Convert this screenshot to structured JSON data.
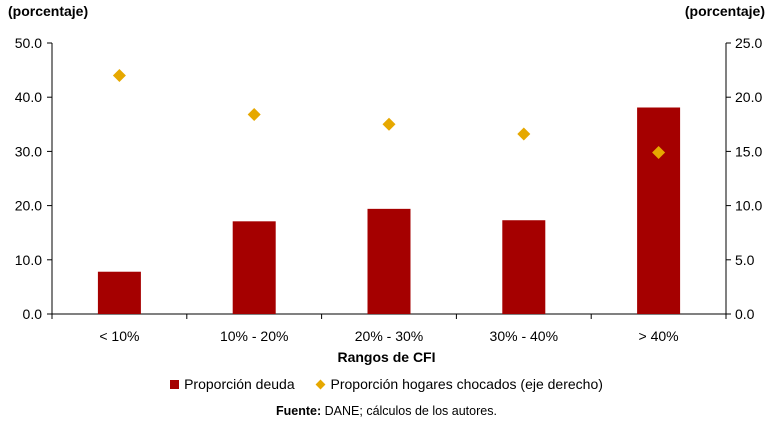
{
  "chart_data": {
    "type": "bar",
    "ylabel_left": "(porcentaje)",
    "ylabel_right": "(porcentaje)",
    "xlabel": "Rangos de CFI",
    "categories": [
      "< 10%",
      "10% - 20%",
      "20% - 30%",
      "30% - 40%",
      "> 40%"
    ],
    "ylim_left": [
      0,
      50
    ],
    "yticks_left": [
      "0.0",
      "10.0",
      "20.0",
      "30.0",
      "40.0",
      "50.0"
    ],
    "ylim_right": [
      0,
      25
    ],
    "yticks_right": [
      "0.0",
      "5.0",
      "10.0",
      "15.0",
      "20.0",
      "25.0"
    ],
    "series": [
      {
        "name": "Proporción deuda",
        "type": "bar",
        "axis": "left",
        "color": "#a50000",
        "values": [
          7.8,
          17.1,
          19.4,
          17.3,
          38.1
        ]
      },
      {
        "name": "Proporción hogares chocados (eje derecho)",
        "type": "scatter",
        "axis": "right",
        "color": "#e6a800",
        "values": [
          22.0,
          18.4,
          17.5,
          16.6,
          14.9
        ]
      }
    ],
    "legend_position": "bottom",
    "grid": false
  },
  "source": {
    "label": "Fuente:",
    "text": " DANE; cálculos de los autores."
  }
}
